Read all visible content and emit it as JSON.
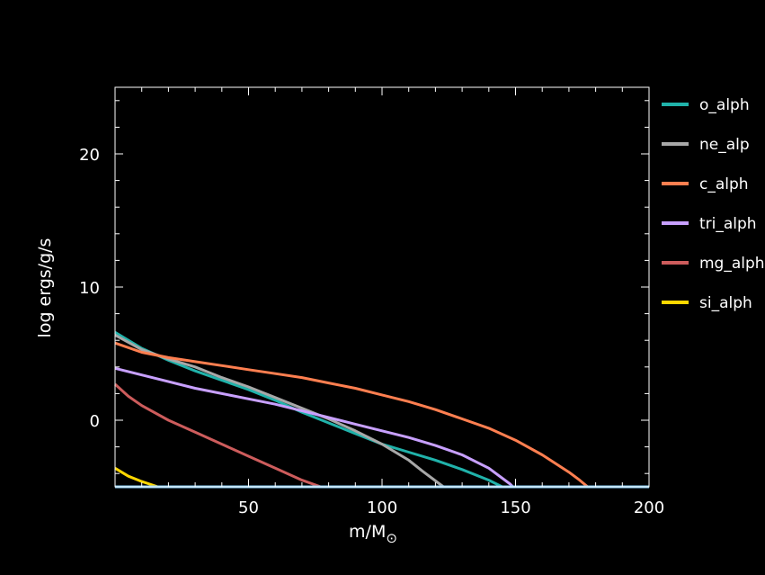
{
  "chart_data": {
    "type": "line",
    "xlabel": "m/M",
    "xlabel_symbol": "⊙",
    "ylabel": "log ergs/g/s",
    "xlim": [
      0,
      200
    ],
    "ylim": [
      -5,
      25
    ],
    "x_ticks": [
      50,
      100,
      150,
      200
    ],
    "y_ticks": [
      0,
      10,
      20
    ],
    "grid": false,
    "legend_position": "right",
    "series": [
      {
        "name": "o_alph",
        "color": "#20b2aa",
        "points": [
          [
            0,
            6.6
          ],
          [
            10,
            5.4
          ],
          [
            20,
            4.5
          ],
          [
            30,
            3.7
          ],
          [
            40,
            3.0
          ],
          [
            50,
            2.3
          ],
          [
            60,
            1.5
          ],
          [
            70,
            0.6
          ],
          [
            80,
            -0.2
          ],
          [
            90,
            -1.0
          ],
          [
            100,
            -1.8
          ],
          [
            110,
            -2.4
          ],
          [
            120,
            -3.0
          ],
          [
            130,
            -3.7
          ],
          [
            140,
            -4.5
          ],
          [
            145,
            -5.0
          ]
        ]
      },
      {
        "name": "ne_alp",
        "color": "#a8a8a8",
        "points": [
          [
            0,
            6.4
          ],
          [
            10,
            5.3
          ],
          [
            20,
            4.6
          ],
          [
            30,
            4.0
          ],
          [
            40,
            3.2
          ],
          [
            50,
            2.5
          ],
          [
            60,
            1.7
          ],
          [
            70,
            0.9
          ],
          [
            80,
            0.1
          ],
          [
            90,
            -0.8
          ],
          [
            100,
            -1.8
          ],
          [
            110,
            -3.0
          ],
          [
            115,
            -3.8
          ],
          [
            123,
            -5.0
          ]
        ]
      },
      {
        "name": "c_alph",
        "color": "#ff7f50",
        "points": [
          [
            0,
            5.8
          ],
          [
            10,
            5.1
          ],
          [
            20,
            4.7
          ],
          [
            30,
            4.4
          ],
          [
            40,
            4.1
          ],
          [
            50,
            3.8
          ],
          [
            60,
            3.5
          ],
          [
            70,
            3.2
          ],
          [
            80,
            2.8
          ],
          [
            90,
            2.4
          ],
          [
            100,
            1.9
          ],
          [
            110,
            1.4
          ],
          [
            120,
            0.8
          ],
          [
            130,
            0.1
          ],
          [
            140,
            -0.6
          ],
          [
            150,
            -1.5
          ],
          [
            160,
            -2.6
          ],
          [
            170,
            -3.9
          ],
          [
            174,
            -4.5
          ],
          [
            177,
            -5.0
          ]
        ]
      },
      {
        "name": "tri_alph",
        "color": "#c8a0ff",
        "points": [
          [
            0,
            3.9
          ],
          [
            10,
            3.4
          ],
          [
            20,
            2.9
          ],
          [
            30,
            2.4
          ],
          [
            40,
            2.0
          ],
          [
            50,
            1.6
          ],
          [
            60,
            1.2
          ],
          [
            70,
            0.7
          ],
          [
            80,
            0.2
          ],
          [
            90,
            -0.3
          ],
          [
            100,
            -0.8
          ],
          [
            110,
            -1.3
          ],
          [
            120,
            -1.9
          ],
          [
            130,
            -2.6
          ],
          [
            140,
            -3.6
          ],
          [
            148,
            -4.8
          ],
          [
            149,
            -5.0
          ]
        ]
      },
      {
        "name": "mg_alph",
        "color": "#cd5c5c",
        "points": [
          [
            0,
            2.7
          ],
          [
            5,
            1.8
          ],
          [
            10,
            1.1
          ],
          [
            20,
            0.0
          ],
          [
            30,
            -0.9
          ],
          [
            40,
            -1.8
          ],
          [
            50,
            -2.7
          ],
          [
            60,
            -3.6
          ],
          [
            70,
            -4.5
          ],
          [
            77,
            -5.0
          ]
        ]
      },
      {
        "name": "si_alph",
        "color": "#ffd700",
        "points": [
          [
            0,
            -3.6
          ],
          [
            5,
            -4.2
          ],
          [
            10,
            -4.6
          ],
          [
            16,
            -5.0
          ]
        ]
      },
      {
        "name": "",
        "color": "#87cefa",
        "points": [
          [
            0,
            -5.0
          ],
          [
            200,
            -5.0
          ]
        ]
      }
    ]
  }
}
